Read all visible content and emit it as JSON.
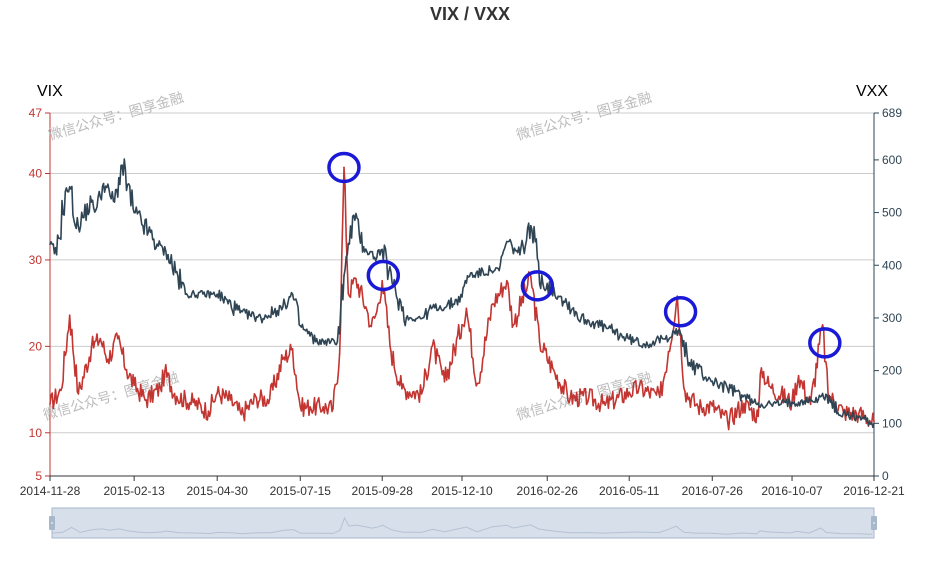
{
  "chart_data": {
    "type": "line",
    "title": "VIX / VXX",
    "colors": {
      "vix": "#c23531",
      "vxx": "#2f4554",
      "annotation": "#1a1ad6",
      "grid": "#cccccc",
      "zoom_fill": "#d7dfea",
      "zoom_handle": "#a7b7cc"
    },
    "left_axis": {
      "name": "VIX",
      "ticks": [
        5,
        10,
        20,
        30,
        40,
        47
      ],
      "range": [
        5,
        47
      ]
    },
    "right_axis": {
      "name": "VXX",
      "ticks": [
        0,
        100,
        200,
        300,
        400,
        500,
        600,
        689
      ],
      "range": [
        0,
        689
      ]
    },
    "x_range": [
      "2014-11-28",
      "2016-12-21"
    ],
    "x_ticks": [
      "2014-11-28",
      "2015-02-13",
      "2015-04-30",
      "2015-07-15",
      "2015-09-28",
      "2015-12-10",
      "2016-02-26",
      "2016-05-11",
      "2016-07-26",
      "2016-10-07",
      "2016-12-21"
    ],
    "series": [
      {
        "name": "VIX",
        "axis": "left",
        "points": [
          [
            "2014-11-28",
            13.3
          ],
          [
            "2014-12-08",
            14.9
          ],
          [
            "2014-12-16",
            23.6
          ],
          [
            "2014-12-24",
            14.5
          ],
          [
            "2015-01-05",
            19.9
          ],
          [
            "2015-01-13",
            20.9
          ],
          [
            "2015-01-20",
            18.5
          ],
          [
            "2015-01-29",
            20.9
          ],
          [
            "2015-02-06",
            17.3
          ],
          [
            "2015-02-13",
            15.5
          ],
          [
            "2015-02-24",
            13.8
          ],
          [
            "2015-03-09",
            15.2
          ],
          [
            "2015-03-13",
            17.0
          ],
          [
            "2015-03-24",
            14.2
          ],
          [
            "2015-04-08",
            13.5
          ],
          [
            "2015-04-22",
            12.5
          ],
          [
            "2015-04-30",
            14.6
          ],
          [
            "2015-05-12",
            13.8
          ],
          [
            "2015-05-22",
            12.1
          ],
          [
            "2015-06-05",
            14.0
          ],
          [
            "2015-06-17",
            13.9
          ],
          [
            "2015-06-29",
            18.5
          ],
          [
            "2015-07-08",
            19.7
          ],
          [
            "2015-07-15",
            13.0
          ],
          [
            "2015-07-24",
            13.0
          ],
          [
            "2015-08-05",
            13.0
          ],
          [
            "2015-08-14",
            12.8
          ],
          [
            "2015-08-20",
            19.1
          ],
          [
            "2015-08-24",
            40.7
          ],
          [
            "2015-08-28",
            26.1
          ],
          [
            "2015-09-04",
            27.8
          ],
          [
            "2015-09-14",
            24.2
          ],
          [
            "2015-09-18",
            22.3
          ],
          [
            "2015-09-23",
            24.0
          ],
          [
            "2015-09-28",
            27.6
          ],
          [
            "2015-10-06",
            19.4
          ],
          [
            "2015-10-16",
            15.1
          ],
          [
            "2015-11-03",
            14.5
          ],
          [
            "2015-11-13",
            20.1
          ],
          [
            "2015-11-24",
            15.9
          ],
          [
            "2015-12-10",
            22.5
          ],
          [
            "2015-12-14",
            24.4
          ],
          [
            "2015-12-24",
            15.7
          ],
          [
            "2016-01-07",
            24.9
          ],
          [
            "2016-01-20",
            27.6
          ],
          [
            "2016-01-26",
            22.5
          ],
          [
            "2016-02-11",
            28.1
          ],
          [
            "2016-02-19",
            20.5
          ],
          [
            "2016-03-04",
            16.9
          ],
          [
            "2016-03-18",
            14.0
          ],
          [
            "2016-04-04",
            14.1
          ],
          [
            "2016-04-19",
            13.2
          ],
          [
            "2016-05-11",
            14.7
          ],
          [
            "2016-05-20",
            15.2
          ],
          [
            "2016-06-08",
            14.1
          ],
          [
            "2016-06-16",
            19.4
          ],
          [
            "2016-06-24",
            25.8
          ],
          [
            "2016-07-01",
            14.8
          ],
          [
            "2016-07-13",
            13.0
          ],
          [
            "2016-07-26",
            13.1
          ],
          [
            "2016-08-09",
            11.3
          ],
          [
            "2016-08-24",
            13.4
          ],
          [
            "2016-09-06",
            11.9
          ],
          [
            "2016-09-09",
            17.5
          ],
          [
            "2016-09-16",
            15.4
          ],
          [
            "2016-10-07",
            13.5
          ],
          [
            "2016-10-13",
            16.6
          ],
          [
            "2016-10-24",
            13.3
          ],
          [
            "2016-11-04",
            22.5
          ],
          [
            "2016-11-09",
            14.4
          ],
          [
            "2016-11-23",
            12.4
          ],
          [
            "2016-12-07",
            12.2
          ],
          [
            "2016-12-21",
            11.3
          ]
        ]
      },
      {
        "name": "VXX",
        "axis": "right",
        "points": [
          [
            "2014-11-28",
            440
          ],
          [
            "2014-12-04",
            420
          ],
          [
            "2014-12-12",
            540
          ],
          [
            "2014-12-17",
            545
          ],
          [
            "2014-12-22",
            470
          ],
          [
            "2015-01-05",
            520
          ],
          [
            "2015-01-09",
            505
          ],
          [
            "2015-01-16",
            555
          ],
          [
            "2015-01-26",
            520
          ],
          [
            "2015-02-02",
            590
          ],
          [
            "2015-02-13",
            500
          ],
          [
            "2015-03-06",
            440
          ],
          [
            "2015-03-16",
            420
          ],
          [
            "2015-04-01",
            345
          ],
          [
            "2015-04-30",
            345
          ],
          [
            "2015-05-21",
            310
          ],
          [
            "2015-06-09",
            300
          ],
          [
            "2015-06-29",
            320
          ],
          [
            "2015-07-08",
            345
          ],
          [
            "2015-07-15",
            285
          ],
          [
            "2015-07-29",
            255
          ],
          [
            "2015-08-18",
            255
          ],
          [
            "2015-08-24",
            380
          ],
          [
            "2015-08-27",
            420
          ],
          [
            "2015-09-02",
            495
          ],
          [
            "2015-09-11",
            435
          ],
          [
            "2015-09-21",
            415
          ],
          [
            "2015-09-28",
            430
          ],
          [
            "2015-10-08",
            360
          ],
          [
            "2015-10-20",
            300
          ],
          [
            "2015-11-04",
            300
          ],
          [
            "2015-11-13",
            320
          ],
          [
            "2015-11-25",
            320
          ],
          [
            "2015-12-10",
            340
          ],
          [
            "2015-12-15",
            380
          ],
          [
            "2016-01-05",
            390
          ],
          [
            "2016-01-13",
            390
          ],
          [
            "2016-01-20",
            445
          ],
          [
            "2016-02-01",
            420
          ],
          [
            "2016-02-11",
            475
          ],
          [
            "2016-02-22",
            365
          ],
          [
            "2016-03-10",
            340
          ],
          [
            "2016-03-28",
            300
          ],
          [
            "2016-04-15",
            285
          ],
          [
            "2016-05-11",
            260
          ],
          [
            "2016-05-25",
            250
          ],
          [
            "2016-06-13",
            260
          ],
          [
            "2016-06-20",
            275
          ],
          [
            "2016-06-27",
            270
          ],
          [
            "2016-07-05",
            215
          ],
          [
            "2016-07-26",
            180
          ],
          [
            "2016-08-16",
            160
          ],
          [
            "2016-09-02",
            140
          ],
          [
            "2016-09-14",
            135
          ],
          [
            "2016-10-07",
            140
          ],
          [
            "2016-10-31",
            145
          ],
          [
            "2016-11-07",
            155
          ],
          [
            "2016-11-18",
            120
          ],
          [
            "2016-12-07",
            112
          ],
          [
            "2016-12-21",
            100
          ]
        ]
      }
    ],
    "annotations": [
      {
        "shape": "circle",
        "date": "2015-08-24",
        "value": 40.7
      },
      {
        "shape": "circle",
        "date": "2015-09-29",
        "value": 28.2
      },
      {
        "shape": "circle",
        "date": "2016-02-17",
        "value": 27.0
      },
      {
        "shape": "circle",
        "date": "2016-06-27",
        "value": 24.0
      },
      {
        "shape": "circle",
        "date": "2016-11-06",
        "value": 20.4
      }
    ],
    "watermark_text": "微信公众号：图享金融",
    "data_zoom": {
      "start_pct": 0,
      "end_pct": 100
    }
  }
}
